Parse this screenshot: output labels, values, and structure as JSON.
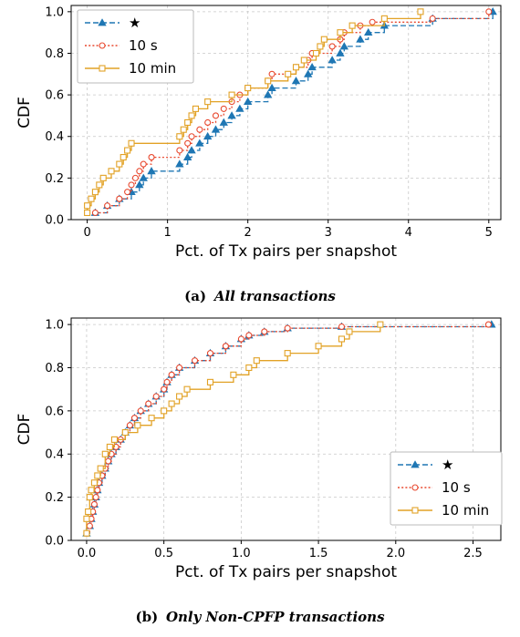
{
  "chart_data": [
    {
      "type": "line",
      "caption_label": "(a)",
      "caption_text": "All transactions",
      "xlabel": "Pct. of Tx pairs per snapshot",
      "ylabel": "CDF",
      "xlim": [
        -0.2,
        5.15
      ],
      "ylim": [
        0,
        1.03
      ],
      "xticks": [
        0,
        1,
        2,
        3,
        4,
        5
      ],
      "xtick_labels": [
        "0",
        "1",
        "2",
        "3",
        "4",
        "5"
      ],
      "yticks": [
        0,
        0.2,
        0.4,
        0.6,
        0.8,
        1.0
      ],
      "ytick_labels": [
        "0.0",
        "0.2",
        "0.4",
        "0.6",
        "0.8",
        "1.0"
      ],
      "grid": true,
      "legend_position": "top-left",
      "series": [
        {
          "name": "★",
          "color": "#1f77b4",
          "dash": "dashed",
          "marker": "triangle",
          "x": [
            0.1,
            0.25,
            0.4,
            0.55,
            0.65,
            0.7,
            0.8,
            1.15,
            1.25,
            1.3,
            1.4,
            1.5,
            1.6,
            1.7,
            1.8,
            1.9,
            2.0,
            2.25,
            2.3,
            2.6,
            2.75,
            2.8,
            3.05,
            3.15,
            3.2,
            3.4,
            3.5,
            3.7,
            4.3,
            5.05
          ],
          "y": [
            0.033,
            0.067,
            0.1,
            0.133,
            0.167,
            0.2,
            0.233,
            0.267,
            0.3,
            0.333,
            0.367,
            0.4,
            0.433,
            0.467,
            0.5,
            0.533,
            0.567,
            0.6,
            0.633,
            0.667,
            0.7,
            0.733,
            0.767,
            0.8,
            0.833,
            0.867,
            0.9,
            0.933,
            0.967,
            1.0
          ]
        },
        {
          "name": "10 s",
          "color": "#e8492f",
          "dash": "dotted",
          "marker": "circle",
          "x": [
            0.1,
            0.25,
            0.4,
            0.5,
            0.55,
            0.6,
            0.65,
            0.7,
            0.8,
            1.15,
            1.25,
            1.3,
            1.4,
            1.5,
            1.6,
            1.7,
            1.8,
            1.9,
            2.0,
            2.25,
            2.3,
            2.6,
            2.75,
            2.8,
            3.05,
            3.15,
            3.2,
            3.4,
            3.55,
            4.3,
            5.0
          ],
          "y": [
            0.033,
            0.067,
            0.1,
            0.133,
            0.167,
            0.2,
            0.233,
            0.267,
            0.3,
            0.333,
            0.367,
            0.4,
            0.433,
            0.467,
            0.5,
            0.533,
            0.567,
            0.6,
            0.633,
            0.667,
            0.7,
            0.733,
            0.767,
            0.8,
            0.833,
            0.867,
            0.9,
            0.933,
            0.95,
            0.967,
            1.0
          ]
        },
        {
          "name": "10 min",
          "color": "#e2a226",
          "dash": "solid",
          "marker": "square",
          "x": [
            0.0,
            0.0,
            0.05,
            0.1,
            0.15,
            0.2,
            0.3,
            0.4,
            0.45,
            0.5,
            0.55,
            1.15,
            1.2,
            1.25,
            1.3,
            1.35,
            1.5,
            1.8,
            2.0,
            2.25,
            2.5,
            2.6,
            2.7,
            2.85,
            2.9,
            2.95,
            3.15,
            3.3,
            3.7,
            4.15
          ],
          "y": [
            0.033,
            0.067,
            0.1,
            0.133,
            0.167,
            0.2,
            0.233,
            0.267,
            0.3,
            0.333,
            0.367,
            0.4,
            0.433,
            0.467,
            0.5,
            0.533,
            0.567,
            0.6,
            0.633,
            0.667,
            0.7,
            0.733,
            0.767,
            0.8,
            0.833,
            0.867,
            0.9,
            0.933,
            0.967,
            1.0
          ]
        }
      ]
    },
    {
      "type": "line",
      "caption_label": "(b)",
      "caption_text": "Only Non-CPFP transactions",
      "xlabel": "Pct. of Tx pairs per snapshot",
      "ylabel": "CDF",
      "xlim": [
        -0.1,
        2.68
      ],
      "ylim": [
        0,
        1.03
      ],
      "xticks": [
        0,
        0.5,
        1.0,
        1.5,
        2.0,
        2.5
      ],
      "xtick_labels": [
        "0.0",
        "0.5",
        "1.0",
        "1.5",
        "2.0",
        "2.5"
      ],
      "yticks": [
        0,
        0.2,
        0.4,
        0.6,
        0.8,
        1.0
      ],
      "ytick_labels": [
        "0.0",
        "0.2",
        "0.4",
        "0.6",
        "0.8",
        "1.0"
      ],
      "grid": true,
      "legend_position": "bottom-right",
      "series": [
        {
          "name": "★",
          "color": "#1f77b4",
          "dash": "dashed",
          "marker": "triangle",
          "x": [
            0.0,
            0.02,
            0.03,
            0.04,
            0.05,
            0.06,
            0.07,
            0.08,
            0.1,
            0.12,
            0.14,
            0.16,
            0.19,
            0.22,
            0.25,
            0.28,
            0.31,
            0.35,
            0.4,
            0.45,
            0.5,
            0.52,
            0.55,
            0.6,
            0.7,
            0.8,
            0.9,
            1.0,
            1.05,
            1.15,
            1.3,
            1.65,
            2.62
          ],
          "y": [
            0.033,
            0.067,
            0.1,
            0.133,
            0.167,
            0.2,
            0.233,
            0.267,
            0.3,
            0.333,
            0.367,
            0.4,
            0.433,
            0.467,
            0.5,
            0.533,
            0.567,
            0.6,
            0.633,
            0.667,
            0.7,
            0.733,
            0.767,
            0.8,
            0.833,
            0.867,
            0.9,
            0.933,
            0.95,
            0.967,
            0.983,
            0.99,
            1.0
          ]
        },
        {
          "name": "10 s",
          "color": "#e8492f",
          "dash": "dotted",
          "marker": "circle",
          "x": [
            0.0,
            0.02,
            0.03,
            0.04,
            0.05,
            0.06,
            0.07,
            0.08,
            0.1,
            0.12,
            0.14,
            0.16,
            0.19,
            0.22,
            0.25,
            0.28,
            0.31,
            0.35,
            0.4,
            0.45,
            0.5,
            0.52,
            0.55,
            0.6,
            0.7,
            0.8,
            0.9,
            1.0,
            1.05,
            1.15,
            1.3,
            1.65,
            2.6
          ],
          "y": [
            0.033,
            0.067,
            0.1,
            0.133,
            0.167,
            0.2,
            0.233,
            0.267,
            0.3,
            0.333,
            0.367,
            0.4,
            0.433,
            0.467,
            0.5,
            0.533,
            0.567,
            0.6,
            0.633,
            0.667,
            0.7,
            0.733,
            0.767,
            0.8,
            0.833,
            0.867,
            0.9,
            0.933,
            0.95,
            0.967,
            0.983,
            0.99,
            1.0
          ]
        },
        {
          "name": "10 min",
          "color": "#e2a226",
          "dash": "solid",
          "marker": "square",
          "x": [
            0.0,
            0.0,
            0.01,
            0.02,
            0.03,
            0.05,
            0.07,
            0.09,
            0.12,
            0.15,
            0.18,
            0.25,
            0.33,
            0.42,
            0.5,
            0.55,
            0.6,
            0.65,
            0.8,
            0.95,
            1.05,
            1.1,
            1.3,
            1.5,
            1.65,
            1.7,
            1.9
          ],
          "y": [
            0.033,
            0.1,
            0.133,
            0.2,
            0.233,
            0.267,
            0.3,
            0.333,
            0.4,
            0.433,
            0.467,
            0.5,
            0.533,
            0.567,
            0.6,
            0.633,
            0.667,
            0.7,
            0.733,
            0.767,
            0.8,
            0.833,
            0.867,
            0.9,
            0.933,
            0.967,
            1.0
          ]
        }
      ]
    }
  ]
}
